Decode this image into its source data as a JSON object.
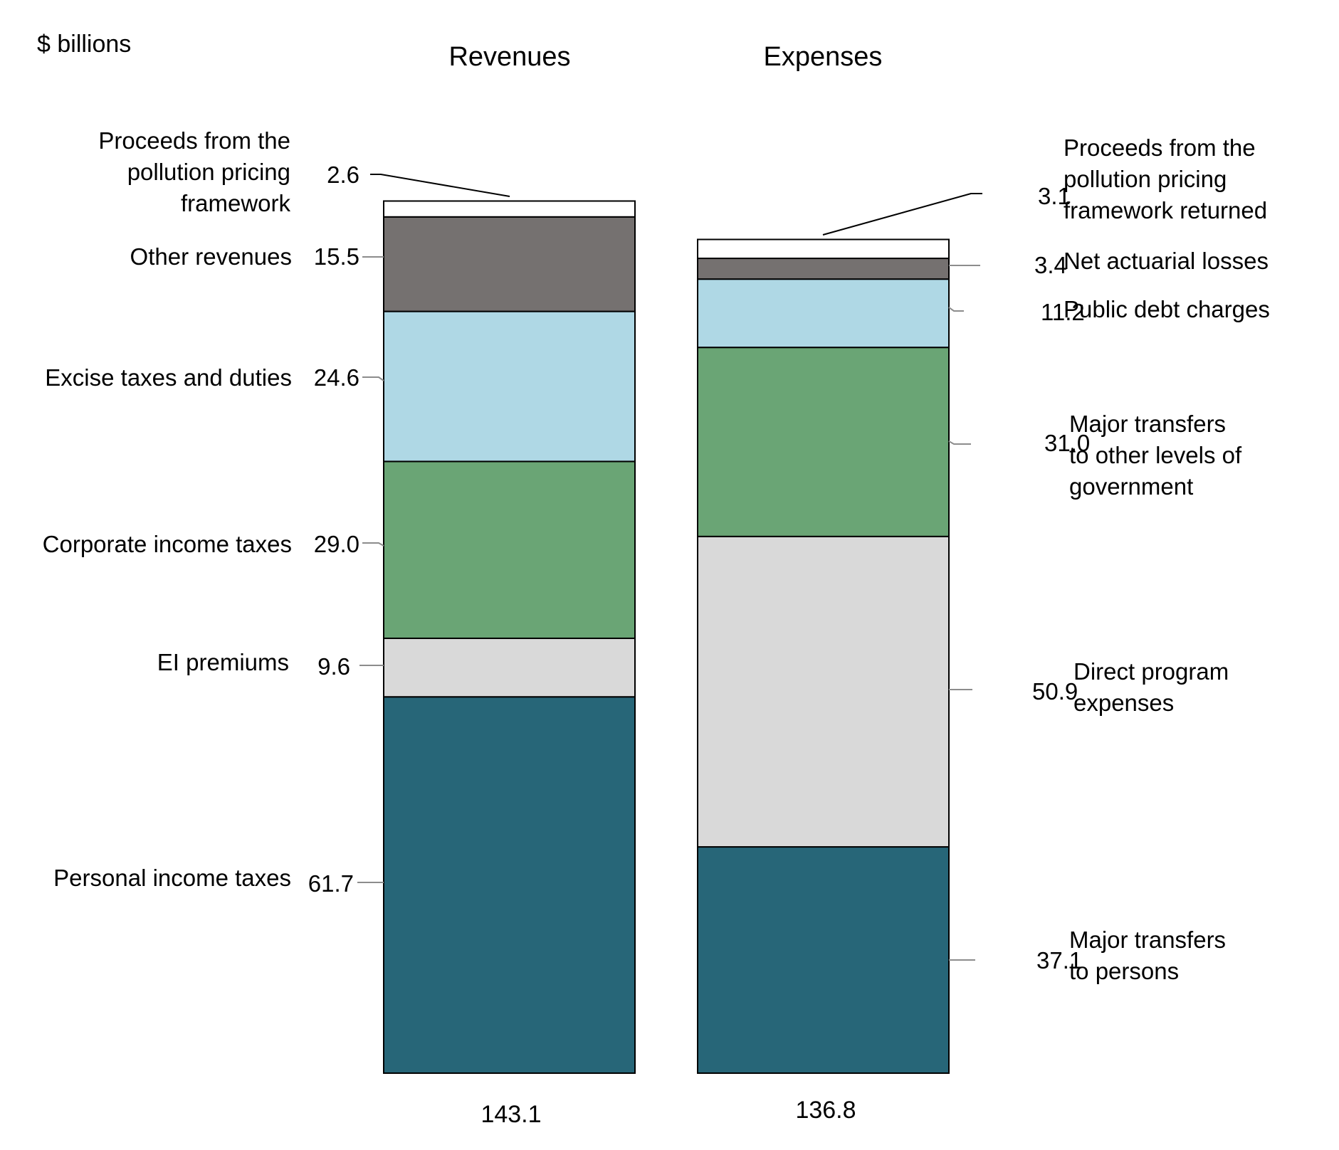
{
  "chart_data": {
    "type": "bar",
    "stacked": true,
    "unit_label": "$ billions",
    "categories": [
      "Revenues",
      "Expenses"
    ],
    "totals": [
      "143.1",
      "136.8"
    ],
    "stacks": [
      {
        "name": "Revenues",
        "total": 143.1,
        "segments": [
          {
            "label": "Personal income taxes",
            "value": 61.7,
            "value_label": "61.7",
            "color": "#276678"
          },
          {
            "label": "EI premiums",
            "value": 9.6,
            "value_label": "9.6",
            "color": "#d9d9d9"
          },
          {
            "label": "Corporate income taxes",
            "value": 29.0,
            "value_label": "29.0",
            "color": "#6aa575"
          },
          {
            "label": "Excise taxes and duties",
            "value": 24.6,
            "value_label": "24.6",
            "color": "#afd8e5"
          },
          {
            "label": "Other revenues",
            "value": 15.5,
            "value_label": "15.5",
            "color": "#757170"
          },
          {
            "label": "Proceeds from the pollution pricing framework",
            "label_lines": [
              "Proceeds from the",
              "pollution pricing",
              "framework"
            ],
            "value": 2.6,
            "value_label": "2.6",
            "color": "#ffffff"
          }
        ]
      },
      {
        "name": "Expenses",
        "total": 136.8,
        "segments": [
          {
            "label": "Major transfers to persons",
            "label_lines": [
              "Major transfers",
              "to persons"
            ],
            "value": 37.1,
            "value_label": "37.1",
            "color": "#276678"
          },
          {
            "label": "Direct program expenses",
            "label_lines": [
              "Direct program",
              "expenses"
            ],
            "value": 50.9,
            "value_label": "50.9",
            "color": "#d9d9d9"
          },
          {
            "label": "Major transfers to other levels of government",
            "label_lines": [
              "Major transfers",
              "to other levels of",
              "government"
            ],
            "value": 31.0,
            "value_label": "31.0",
            "color": "#6aa575"
          },
          {
            "label": "Public debt charges",
            "value": 11.2,
            "value_label": "11.2",
            "color": "#afd8e5"
          },
          {
            "label": "Net actuarial losses",
            "value": 3.4,
            "value_label": "3.4",
            "color": "#757170"
          },
          {
            "label": "Proceeds from the pollution pricing framework returned",
            "label_lines": [
              "Proceeds from the",
              "pollution pricing",
              "framework returned"
            ],
            "value": 3.1,
            "value_label": "3.1",
            "color": "#ffffff"
          }
        ]
      }
    ]
  }
}
